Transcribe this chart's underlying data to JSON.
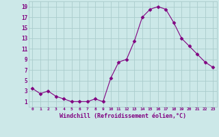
{
  "x": [
    0,
    1,
    2,
    3,
    4,
    5,
    6,
    7,
    8,
    9,
    10,
    11,
    12,
    13,
    14,
    15,
    16,
    17,
    18,
    19,
    20,
    21,
    22,
    23
  ],
  "y": [
    3.5,
    2.5,
    3.0,
    2.0,
    1.5,
    1.0,
    1.0,
    1.0,
    1.5,
    1.0,
    5.5,
    8.5,
    9.0,
    12.5,
    17.0,
    18.5,
    19.0,
    18.5,
    16.0,
    13.0,
    11.5,
    10.0,
    8.5,
    7.5
  ],
  "line_color": "#800080",
  "marker": "D",
  "marker_size": 2.5,
  "bg_color": "#cce8e8",
  "grid_color": "#aacccc",
  "xlabel": "Windchill (Refroidissement éolien,°C)",
  "xlabel_color": "#800080",
  "tick_color": "#800080",
  "xlim": [
    -0.5,
    23.5
  ],
  "ylim": [
    0,
    20
  ],
  "yticks": [
    1,
    3,
    5,
    7,
    9,
    11,
    13,
    15,
    17,
    19
  ],
  "xticks": [
    0,
    1,
    2,
    3,
    4,
    5,
    6,
    7,
    8,
    9,
    10,
    11,
    12,
    13,
    14,
    15,
    16,
    17,
    18,
    19,
    20,
    21,
    22,
    23
  ]
}
